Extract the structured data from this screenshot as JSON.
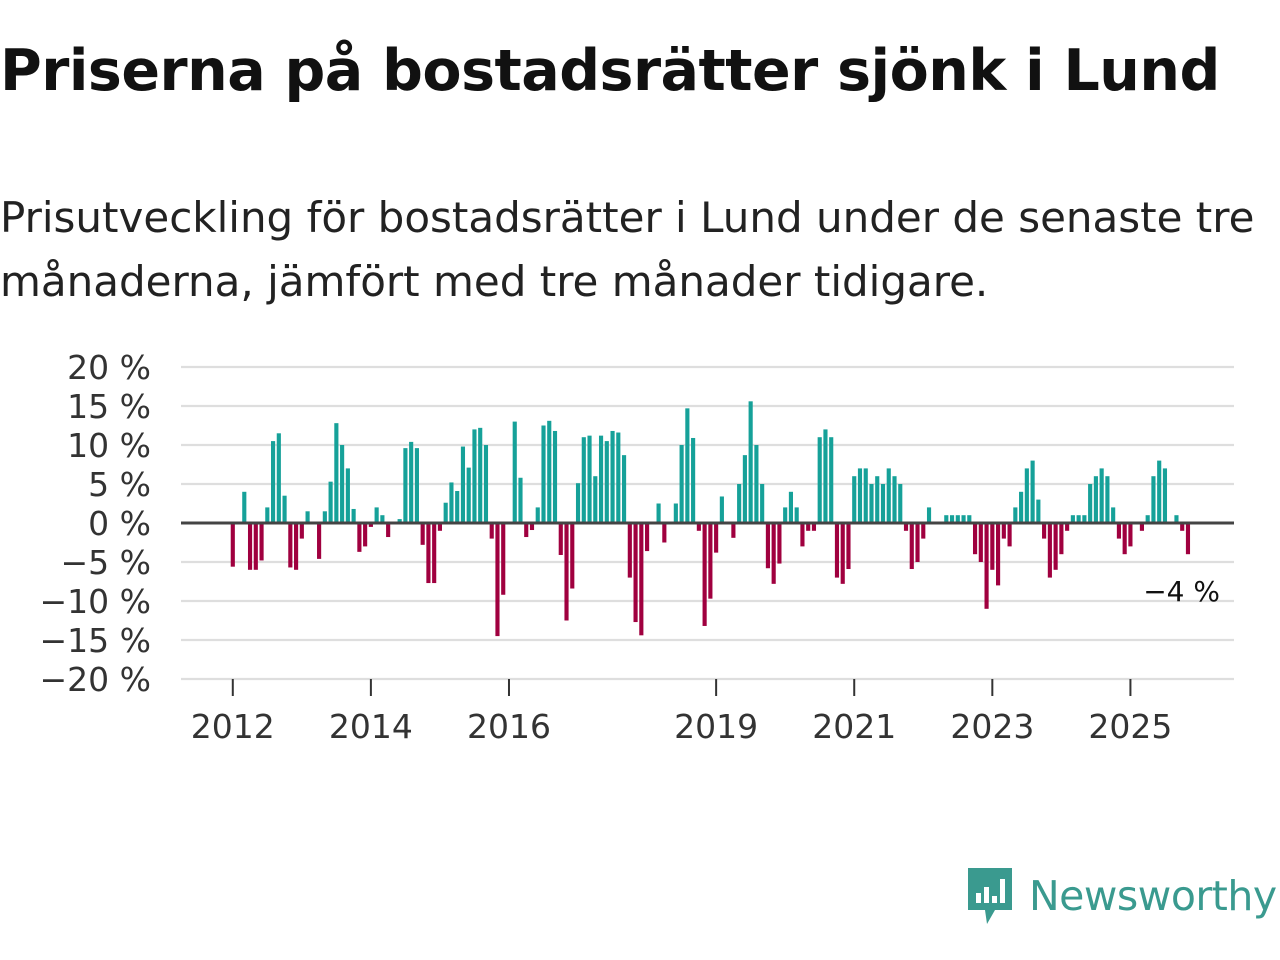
{
  "title": "Priserna på bostadsrätter sjönk i Lund",
  "subtitle": "Prisutveckling för bostadsrätter i Lund under de senaste tre månaderna, jämfört med tre månader tidigare.",
  "brand": {
    "name": "Newsworthy",
    "color": "#3a9a8f"
  },
  "colors": {
    "positive": "#16a199",
    "negative": "#a0003f",
    "grid": "#dedede",
    "zero": "#444444"
  },
  "chart_data": {
    "type": "bar",
    "title": "",
    "xlabel": "",
    "ylabel": "",
    "ylim": [
      -20,
      20
    ],
    "y_ticks": [
      20,
      15,
      10,
      5,
      0,
      -5,
      -10,
      -15,
      -20
    ],
    "y_tick_labels": [
      "20 %",
      "15 %",
      "10 %",
      "5 %",
      "0 %",
      "−5 %",
      "−10 %",
      "−15 %",
      "−20 %"
    ],
    "x_ticks": [
      {
        "label": "2012",
        "month_index": 0
      },
      {
        "label": "2014",
        "month_index": 24
      },
      {
        "label": "2016",
        "month_index": 48
      },
      {
        "label": "2019",
        "month_index": 84
      },
      {
        "label": "2021",
        "month_index": 108
      },
      {
        "label": "2023",
        "month_index": 132
      },
      {
        "label": "2025",
        "month_index": 156
      }
    ],
    "x_range_months": [
      -9,
      174
    ],
    "start": "2012-01",
    "values": [
      -5.6,
      0,
      4,
      -6,
      -6,
      -4.8,
      2,
      10.5,
      11.5,
      3.5,
      -5.7,
      -6,
      -2,
      1.5,
      0,
      -4.6,
      1.5,
      5.3,
      12.8,
      10,
      7,
      1.8,
      -3.7,
      -3,
      -0.5,
      2,
      1,
      -1.8,
      0,
      0.5,
      9.6,
      10.4,
      9.6,
      -2.8,
      -7.7,
      -7.7,
      -1,
      2.6,
      5.2,
      4.1,
      9.8,
      7.1,
      12,
      12.2,
      10,
      -2,
      -14.5,
      -9.2,
      0,
      13,
      5.8,
      -1.8,
      -0.9,
      2,
      12.5,
      13.1,
      11.8,
      -4.1,
      -12.5,
      -8.4,
      5.1,
      11,
      11.2,
      6,
      11.2,
      10.5,
      11.8,
      11.6,
      8.7,
      -7,
      -12.7,
      -14.4,
      -3.6,
      0,
      2.5,
      -2.5,
      0,
      2.5,
      10,
      14.7,
      10.9,
      -1,
      -13.2,
      -9.7,
      -3.8,
      3.4,
      0,
      -1.9,
      5,
      8.7,
      15.6,
      10,
      5,
      -5.8,
      -7.8,
      -5.2,
      2,
      4,
      2,
      -3,
      -1,
      -1,
      11,
      12,
      11,
      -7,
      -7.8,
      -5.9,
      6,
      7,
      7,
      5,
      6,
      5,
      7,
      6,
      5,
      -1,
      -5.9,
      -5,
      -2,
      2,
      0,
      0,
      1,
      1,
      1,
      1,
      1,
      -4,
      -5,
      -11,
      -6,
      -8,
      -2,
      -3,
      2,
      4,
      7,
      8,
      3,
      -2,
      -7,
      -6,
      -4,
      -1,
      1,
      1,
      1,
      5,
      6,
      7,
      6,
      2,
      -2,
      -4,
      -3,
      0,
      -1,
      1,
      6,
      8,
      7,
      0,
      1,
      -1,
      -4
    ],
    "annotation": {
      "label": "−4 %",
      "value": -4
    }
  }
}
